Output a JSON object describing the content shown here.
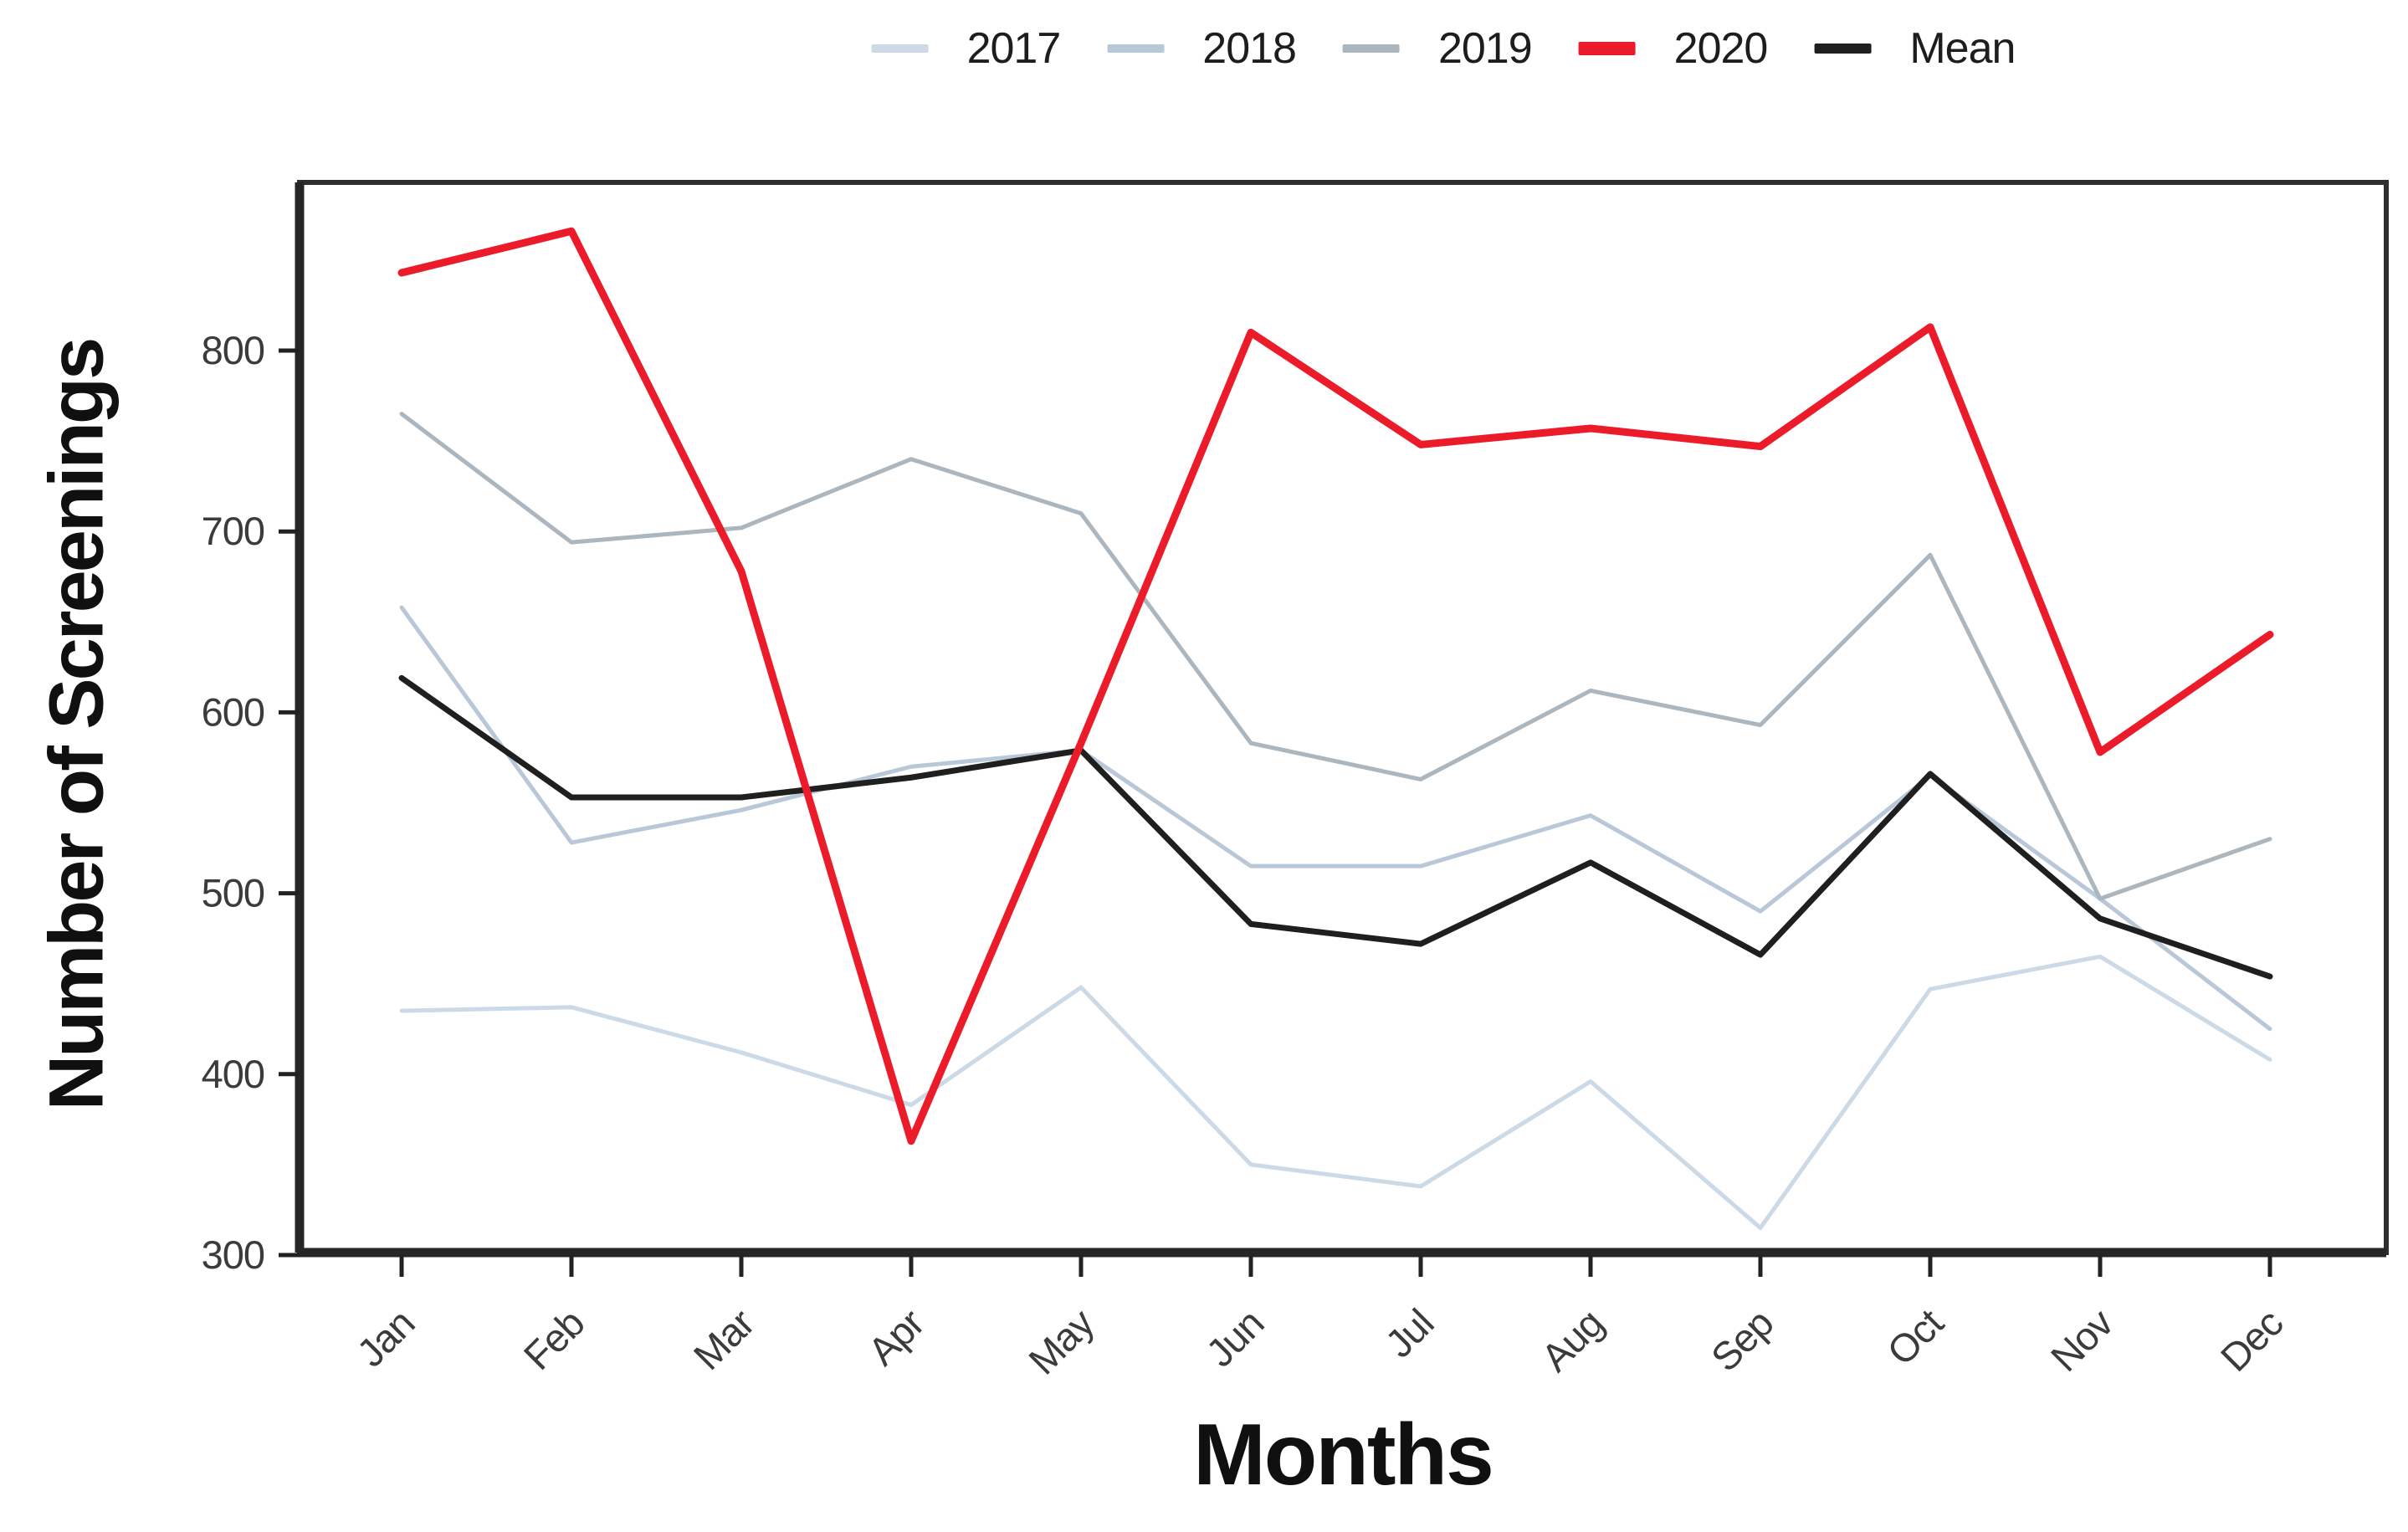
{
  "figure": {
    "background": "#ffffff"
  },
  "legend": {
    "position": "top",
    "order": [
      "2017",
      "2018",
      "2019",
      "2020",
      "Mean"
    ]
  },
  "axes": {
    "x_label": "Months",
    "y_label": "Number of Screenings",
    "y_ticks": [
      300,
      400,
      500,
      600,
      700,
      800
    ],
    "tick_text_color": "#3b3b3b",
    "axis_line_color": "#2e2e2e"
  },
  "chart_data": {
    "type": "line",
    "title": "",
    "xlabel": "Months",
    "ylabel": "Number of Screenings",
    "categories": [
      "Jan",
      "Feb",
      "Mar",
      "Apr",
      "May",
      "Jun",
      "Jul",
      "Aug",
      "Sep",
      "Oct",
      "Nov",
      "Dec"
    ],
    "ylim": [
      300,
      893
    ],
    "yticks": [
      300,
      400,
      500,
      600,
      700,
      800
    ],
    "grid": false,
    "legend_position": "top",
    "x_tick_rotation": -45,
    "series": [
      {
        "name": "2017",
        "color": "#ccd9e7",
        "width": 5,
        "values": [
          435,
          437,
          412,
          383,
          448,
          350,
          338,
          396,
          315,
          447,
          465,
          408
        ]
      },
      {
        "name": "2018",
        "color": "#b9c8d8",
        "width": 5,
        "values": [
          658,
          528,
          546,
          570,
          579,
          515,
          515,
          543,
          490,
          565,
          497,
          425
        ]
      },
      {
        "name": "2019",
        "color": "#abb6bf",
        "width": 5,
        "values": [
          765,
          694,
          702,
          740,
          710,
          583,
          563,
          612,
          593,
          687,
          497,
          530
        ]
      },
      {
        "name": "Mean",
        "color": "#1f1f1f",
        "width": 7,
        "values": [
          619,
          553,
          553,
          564,
          579,
          483,
          472,
          517,
          466,
          566,
          486,
          454
        ]
      },
      {
        "name": "2020",
        "color": "#ec1b2a",
        "width": 9,
        "values": [
          843,
          866,
          678,
          363,
          583,
          810,
          748,
          757,
          747,
          813,
          578,
          643
        ]
      }
    ]
  }
}
